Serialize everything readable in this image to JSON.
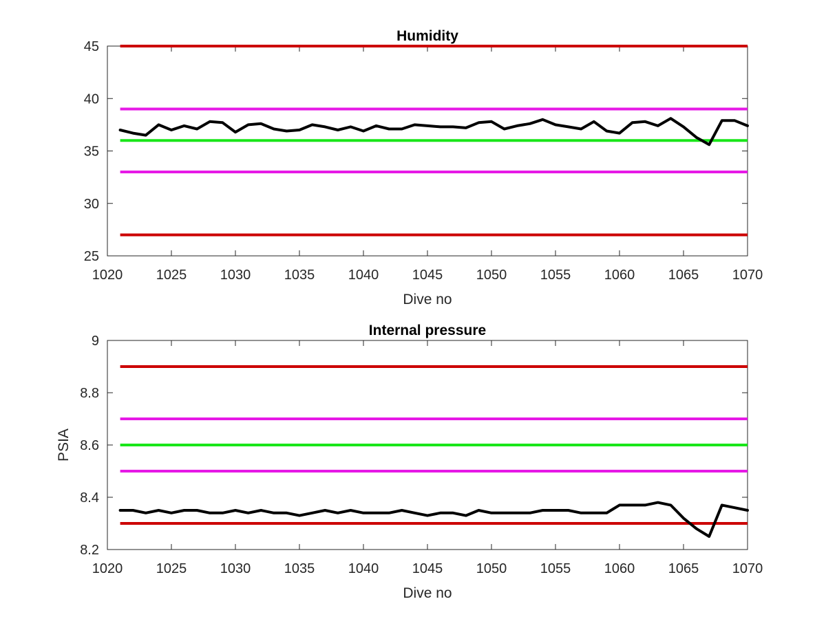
{
  "chart_data": [
    {
      "type": "line",
      "title": "Humidity",
      "xlabel": "Dive no",
      "ylabel": "",
      "xlim": [
        1020,
        1070
      ],
      "ylim": [
        25,
        45
      ],
      "xticks": [
        1020,
        1025,
        1030,
        1035,
        1040,
        1045,
        1050,
        1055,
        1060,
        1065,
        1070
      ],
      "yticks": [
        25,
        30,
        35,
        40,
        45
      ],
      "grid": false,
      "reference_lines": [
        {
          "y": 45,
          "color": "#cc0000"
        },
        {
          "y": 39,
          "color": "#e619e6"
        },
        {
          "y": 36,
          "color": "#19e619"
        },
        {
          "y": 33,
          "color": "#e619e6"
        },
        {
          "y": 27,
          "color": "#cc0000"
        }
      ],
      "series": [
        {
          "color": "#000000",
          "x": [
            1021,
            1022,
            1023,
            1024,
            1025,
            1026,
            1027,
            1028,
            1029,
            1030,
            1031,
            1032,
            1033,
            1034,
            1035,
            1036,
            1037,
            1038,
            1039,
            1040,
            1041,
            1042,
            1043,
            1044,
            1045,
            1046,
            1047,
            1048,
            1049,
            1050,
            1051,
            1052,
            1053,
            1054,
            1055,
            1056,
            1057,
            1058,
            1059,
            1060,
            1061,
            1062,
            1063,
            1064,
            1065,
            1066,
            1067,
            1068,
            1069,
            1070
          ],
          "y": [
            37.0,
            36.7,
            36.5,
            37.5,
            37.0,
            37.4,
            37.1,
            37.8,
            37.7,
            36.8,
            37.5,
            37.6,
            37.1,
            36.9,
            37.0,
            37.5,
            37.3,
            37.0,
            37.3,
            36.9,
            37.4,
            37.1,
            37.1,
            37.5,
            37.4,
            37.3,
            37.3,
            37.2,
            37.7,
            37.8,
            37.1,
            37.4,
            37.6,
            38.0,
            37.5,
            37.3,
            37.1,
            37.8,
            36.9,
            36.7,
            37.7,
            37.8,
            37.4,
            38.1,
            37.3,
            36.3,
            35.6,
            37.9,
            37.9,
            37.4
          ]
        }
      ]
    },
    {
      "type": "line",
      "title": "Internal pressure",
      "xlabel": "Dive no",
      "ylabel": "PSIA",
      "xlim": [
        1020,
        1070
      ],
      "ylim": [
        8.2,
        9.0
      ],
      "xticks": [
        1020,
        1025,
        1030,
        1035,
        1040,
        1045,
        1050,
        1055,
        1060,
        1065,
        1070
      ],
      "yticks": [
        8.2,
        8.4,
        8.6,
        8.8,
        9.0
      ],
      "yticklabels": [
        "8.2",
        "8.4",
        "8.6",
        "8.8",
        "9"
      ],
      "grid": false,
      "reference_lines": [
        {
          "y": 8.9,
          "color": "#cc0000"
        },
        {
          "y": 8.7,
          "color": "#e619e6"
        },
        {
          "y": 8.6,
          "color": "#19e619"
        },
        {
          "y": 8.5,
          "color": "#e619e6"
        },
        {
          "y": 8.3,
          "color": "#cc0000"
        }
      ],
      "series": [
        {
          "color": "#000000",
          "x": [
            1021,
            1022,
            1023,
            1024,
            1025,
            1026,
            1027,
            1028,
            1029,
            1030,
            1031,
            1032,
            1033,
            1034,
            1035,
            1036,
            1037,
            1038,
            1039,
            1040,
            1041,
            1042,
            1043,
            1044,
            1045,
            1046,
            1047,
            1048,
            1049,
            1050,
            1051,
            1052,
            1053,
            1054,
            1055,
            1056,
            1057,
            1058,
            1059,
            1060,
            1061,
            1062,
            1063,
            1064,
            1065,
            1066,
            1067,
            1068,
            1069,
            1070
          ],
          "y": [
            8.35,
            8.35,
            8.34,
            8.35,
            8.34,
            8.35,
            8.35,
            8.34,
            8.34,
            8.35,
            8.34,
            8.35,
            8.34,
            8.34,
            8.33,
            8.34,
            8.35,
            8.34,
            8.35,
            8.34,
            8.34,
            8.34,
            8.35,
            8.34,
            8.33,
            8.34,
            8.34,
            8.33,
            8.35,
            8.34,
            8.34,
            8.34,
            8.34,
            8.35,
            8.35,
            8.35,
            8.34,
            8.34,
            8.34,
            8.37,
            8.37,
            8.37,
            8.38,
            8.37,
            8.32,
            8.28,
            8.25,
            8.37,
            8.36,
            8.35
          ]
        }
      ]
    }
  ]
}
